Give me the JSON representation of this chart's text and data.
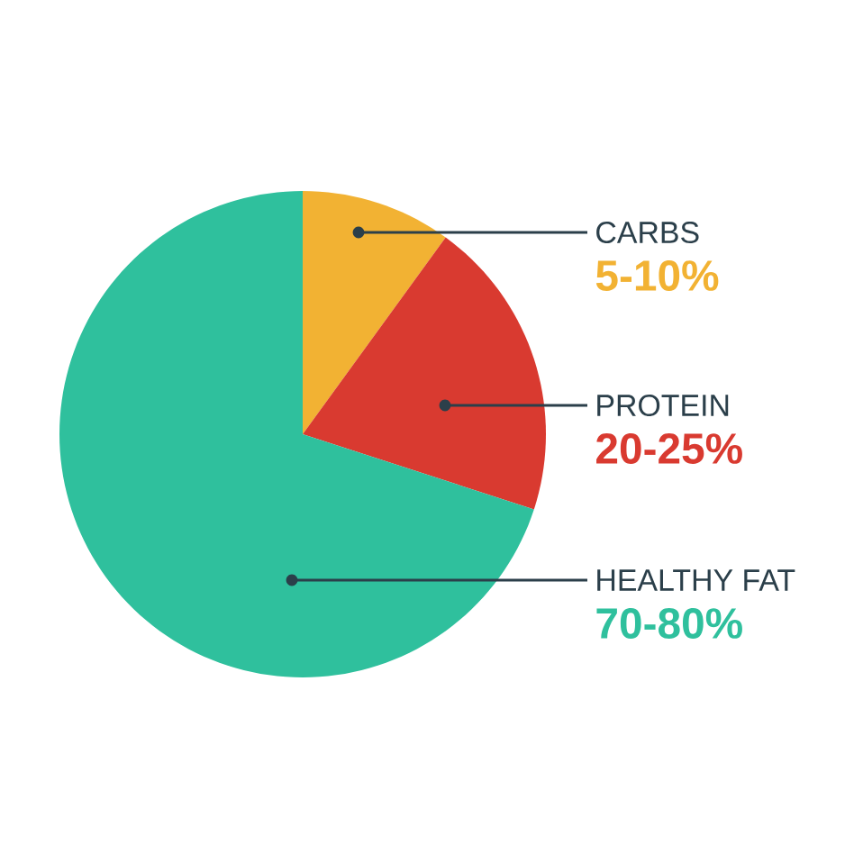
{
  "chart_data": {
    "type": "pie",
    "categories": [
      "CARBS",
      "PROTEIN",
      "HEALTHY FAT"
    ],
    "values": [
      10,
      20,
      70
    ],
    "colors": [
      "#f2b233",
      "#d93a30",
      "#2fc09d"
    ],
    "annotations": [
      "5-10%",
      "20-25%",
      "70-80%"
    ]
  }
}
